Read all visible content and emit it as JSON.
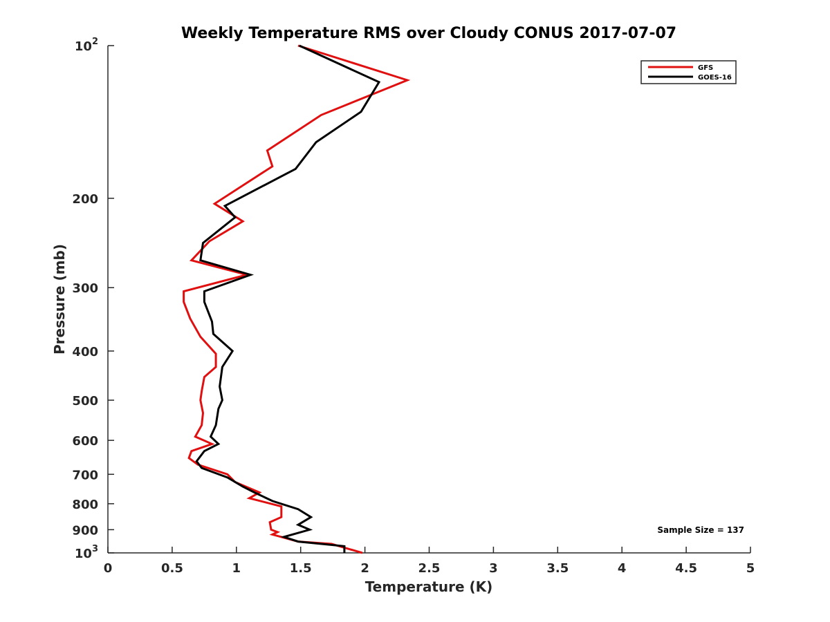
{
  "chart_data": {
    "type": "line",
    "title": "Weekly Temperature RMS over Cloudy CONUS 2017-07-07",
    "xlabel": "Temperature (K)",
    "ylabel": "Pressure (mb)",
    "xlim": [
      0,
      5
    ],
    "ylim": [
      100,
      1000
    ],
    "y_scale": "log",
    "y_reversed": true,
    "grid": false,
    "legend_position": "top-right",
    "x_ticks": [
      0,
      0.5,
      1,
      1.5,
      2,
      2.5,
      3,
      3.5,
      4,
      4.5,
      5
    ],
    "x_tick_labels": [
      "0",
      "0.5",
      "1",
      "1.5",
      "2",
      "2.5",
      "3",
      "3.5",
      "4",
      "4.5",
      "5"
    ],
    "y_ticks": [
      100,
      200,
      300,
      400,
      500,
      600,
      700,
      800,
      900,
      1000
    ],
    "y_tick_labels": [
      {
        "base": "10",
        "exp": "2"
      },
      {
        "base": "200",
        "exp": ""
      },
      {
        "base": "300",
        "exp": ""
      },
      {
        "base": "400",
        "exp": ""
      },
      {
        "base": "500",
        "exp": ""
      },
      {
        "base": "600",
        "exp": ""
      },
      {
        "base": "700",
        "exp": ""
      },
      {
        "base": "800",
        "exp": ""
      },
      {
        "base": "900",
        "exp": ""
      },
      {
        "base": "10",
        "exp": "3"
      }
    ],
    "annotation": "Sample Size = 137",
    "series": [
      {
        "name": "GFS",
        "color": "#e01010",
        "points": [
          [
            1.48,
            100
          ],
          [
            2.33,
            117
          ],
          [
            1.66,
            137
          ],
          [
            1.24,
            161
          ],
          [
            1.28,
            173
          ],
          [
            0.83,
            205
          ],
          [
            1.05,
            222
          ],
          [
            0.79,
            243
          ],
          [
            0.65,
            265
          ],
          [
            1.08,
            283
          ],
          [
            0.59,
            305
          ],
          [
            0.59,
            320
          ],
          [
            0.64,
            345
          ],
          [
            0.72,
            375
          ],
          [
            0.84,
            405
          ],
          [
            0.84,
            430
          ],
          [
            0.75,
            450
          ],
          [
            0.73,
            480
          ],
          [
            0.72,
            500
          ],
          [
            0.74,
            530
          ],
          [
            0.73,
            560
          ],
          [
            0.68,
            590
          ],
          [
            0.81,
            610
          ],
          [
            0.65,
            630
          ],
          [
            0.63,
            650
          ],
          [
            0.7,
            670
          ],
          [
            0.93,
            700
          ],
          [
            0.99,
            725
          ],
          [
            1.18,
            760
          ],
          [
            1.1,
            780
          ],
          [
            1.35,
            810
          ],
          [
            1.35,
            850
          ],
          [
            1.26,
            870
          ],
          [
            1.27,
            900
          ],
          [
            1.32,
            910
          ],
          [
            1.28,
            920
          ],
          [
            1.48,
            950
          ],
          [
            1.74,
            960
          ],
          [
            1.98,
            1000
          ]
        ]
      },
      {
        "name": "GOES-16",
        "color": "#000000",
        "points": [
          [
            1.49,
            100
          ],
          [
            2.11,
            118
          ],
          [
            1.97,
            135
          ],
          [
            1.62,
            155
          ],
          [
            1.46,
            175
          ],
          [
            0.91,
            207
          ],
          [
            0.99,
            218
          ],
          [
            0.74,
            245
          ],
          [
            0.72,
            265
          ],
          [
            1.11,
            283
          ],
          [
            0.75,
            305
          ],
          [
            0.75,
            320
          ],
          [
            0.81,
            350
          ],
          [
            0.82,
            370
          ],
          [
            0.97,
            400
          ],
          [
            0.89,
            430
          ],
          [
            0.87,
            470
          ],
          [
            0.89,
            500
          ],
          [
            0.86,
            520
          ],
          [
            0.84,
            560
          ],
          [
            0.8,
            590
          ],
          [
            0.86,
            610
          ],
          [
            0.75,
            630
          ],
          [
            0.69,
            660
          ],
          [
            0.73,
            680
          ],
          [
            0.93,
            710
          ],
          [
            1.05,
            740
          ],
          [
            1.14,
            760
          ],
          [
            1.28,
            790
          ],
          [
            1.48,
            820
          ],
          [
            1.58,
            850
          ],
          [
            1.48,
            880
          ],
          [
            1.57,
            900
          ],
          [
            1.37,
            930
          ],
          [
            1.48,
            950
          ],
          [
            1.84,
            970
          ],
          [
            1.84,
            1000
          ]
        ]
      }
    ]
  }
}
